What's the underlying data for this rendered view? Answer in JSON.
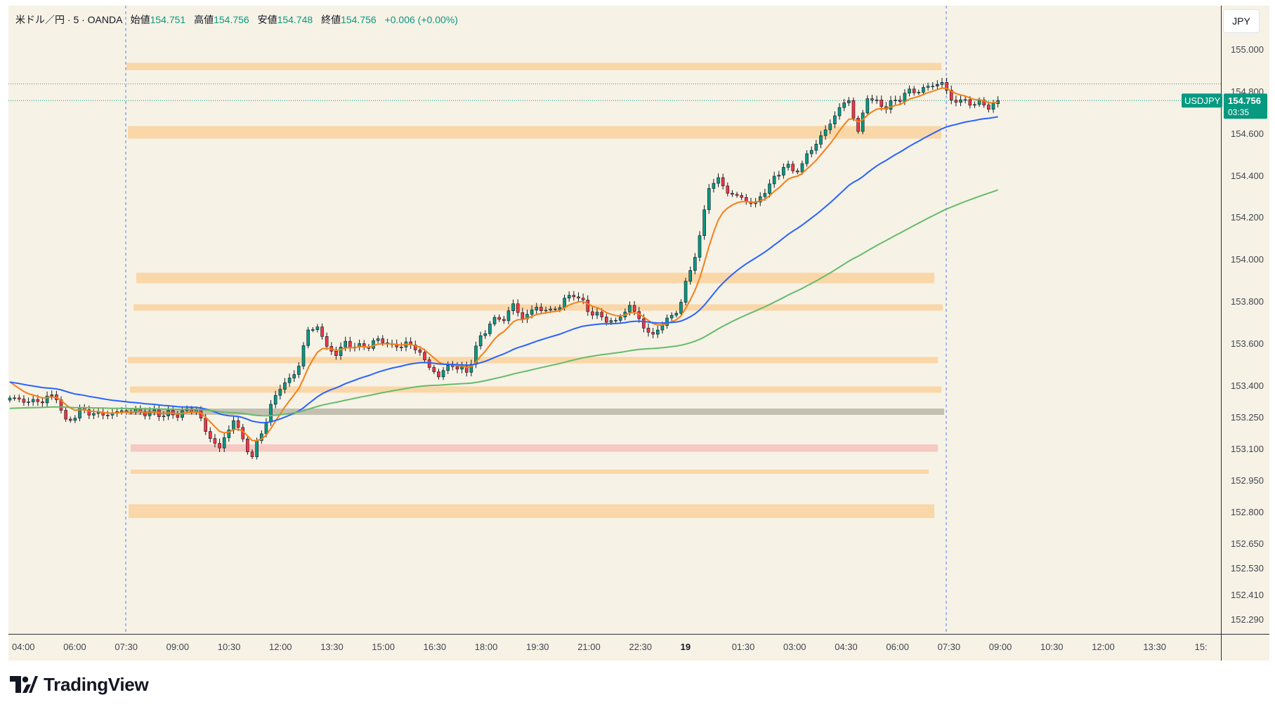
{
  "legend": {
    "symbol": "米ドル／円 · 5 · OANDA",
    "open_label": "始値",
    "open": "154.751",
    "high_label": "高値",
    "high": "154.756",
    "low_label": "安値",
    "low": "154.748",
    "close_label": "終値",
    "close": "154.756",
    "change": "+0.006 (+0.00%)"
  },
  "currency": "JPY",
  "price_tag": {
    "symbol": "USDJPY",
    "price": "154.756",
    "countdown": "03:35"
  },
  "brand": "TradingView",
  "colors": {
    "background": "#f6f2e6",
    "up": "#089981",
    "down": "#f23645",
    "ema_fast": "#f57f17",
    "ema_mid": "#2962ff",
    "ema_slow": "#66bb6a",
    "zone": "#fad7a8",
    "zone_gray": "#c3c0b2",
    "zone_red": "#f6c9c3"
  },
  "chart_data": {
    "type": "candlestick",
    "y_tick_labels": [
      "155.000",
      "154.800",
      "154.600",
      "154.400",
      "154.200",
      "154.000",
      "153.800",
      "153.600",
      "153.400",
      "153.250",
      "153.100",
      "152.950",
      "152.800",
      "152.650",
      "152.530",
      "152.410",
      "152.290"
    ],
    "x_tick_labels": [
      "04:00",
      "06:00",
      "07:30",
      "09:00",
      "10:30",
      "12:00",
      "13:30",
      "15:00",
      "16:30",
      "18:00",
      "19:30",
      "21:00",
      "22:30",
      "19",
      "01:30",
      "03:00",
      "04:30",
      "06:00",
      "07:30",
      "09:00",
      "10:30",
      "12:00",
      "13:30",
      "15:"
    ],
    "last_price": 154.756,
    "high_line": 154.835,
    "session_markers": [
      "07:00",
      "07:00"
    ],
    "zones": [
      {
        "from": 154.9,
        "to": 154.935
      },
      {
        "from": 154.575,
        "to": 154.635
      },
      {
        "from": 153.885,
        "to": 153.935
      },
      {
        "from": 153.755,
        "to": 153.785
      },
      {
        "from": 153.505,
        "to": 153.535
      },
      {
        "from": 153.365,
        "to": 153.395
      },
      {
        "from": 153.26,
        "to": 153.29,
        "style": "gray"
      },
      {
        "from": 153.085,
        "to": 153.12,
        "style": "red"
      },
      {
        "from": 152.98,
        "to": 153.0
      },
      {
        "from": 152.77,
        "to": 152.835
      }
    ],
    "price_path": [
      [
        0,
        153.34
      ],
      [
        5,
        153.32
      ],
      [
        10,
        153.35
      ],
      [
        12,
        153.22
      ],
      [
        15,
        153.28
      ],
      [
        20,
        153.26
      ],
      [
        25,
        153.28
      ],
      [
        30,
        153.27
      ],
      [
        35,
        153.26
      ],
      [
        40,
        153.29
      ],
      [
        42,
        153.18
      ],
      [
        45,
        153.1
      ],
      [
        48,
        153.24
      ],
      [
        50,
        153.14
      ],
      [
        52,
        153.06
      ],
      [
        55,
        153.24
      ],
      [
        58,
        153.4
      ],
      [
        60,
        153.42
      ],
      [
        62,
        153.5
      ],
      [
        64,
        153.66
      ],
      [
        66,
        153.68
      ],
      [
        68,
        153.58
      ],
      [
        70,
        153.55
      ],
      [
        72,
        153.6
      ],
      [
        75,
        153.58
      ],
      [
        78,
        153.6
      ],
      [
        80,
        153.62
      ],
      [
        82,
        153.58
      ],
      [
        85,
        153.6
      ],
      [
        88,
        153.56
      ],
      [
        90,
        153.48
      ],
      [
        92,
        153.45
      ],
      [
        95,
        153.5
      ],
      [
        98,
        153.46
      ],
      [
        100,
        153.58
      ],
      [
        103,
        153.7
      ],
      [
        106,
        153.72
      ],
      [
        108,
        153.78
      ],
      [
        110,
        153.72
      ],
      [
        113,
        153.77
      ],
      [
        116,
        153.75
      ],
      [
        119,
        153.8
      ],
      [
        121,
        153.84
      ],
      [
        124,
        153.76
      ],
      [
        127,
        153.72
      ],
      [
        130,
        153.7
      ],
      [
        133,
        153.78
      ],
      [
        136,
        153.68
      ],
      [
        138,
        153.63
      ],
      [
        140,
        153.7
      ],
      [
        142,
        153.72
      ],
      [
        144,
        153.8
      ],
      [
        146,
        153.95
      ],
      [
        148,
        154.1
      ],
      [
        150,
        154.35
      ],
      [
        152,
        154.38
      ],
      [
        154,
        154.32
      ],
      [
        156,
        154.3
      ],
      [
        158,
        154.28
      ],
      [
        160,
        154.26
      ],
      [
        162,
        154.33
      ],
      [
        164,
        154.38
      ],
      [
        166,
        154.45
      ],
      [
        168,
        154.42
      ],
      [
        170,
        154.45
      ],
      [
        172,
        154.53
      ],
      [
        174,
        154.58
      ],
      [
        176,
        154.65
      ],
      [
        178,
        154.72
      ],
      [
        180,
        154.76
      ],
      [
        182,
        154.6
      ],
      [
        184,
        154.78
      ],
      [
        186,
        154.74
      ],
      [
        188,
        154.73
      ],
      [
        190,
        154.75
      ],
      [
        192,
        154.79
      ],
      [
        194,
        154.8
      ],
      [
        196,
        154.81
      ],
      [
        198,
        154.83
      ],
      [
        200,
        154.84
      ],
      [
        202,
        154.76
      ],
      [
        205,
        154.75
      ],
      [
        208,
        154.74
      ],
      [
        211,
        154.73
      ],
      [
        212,
        154.756
      ]
    ]
  }
}
